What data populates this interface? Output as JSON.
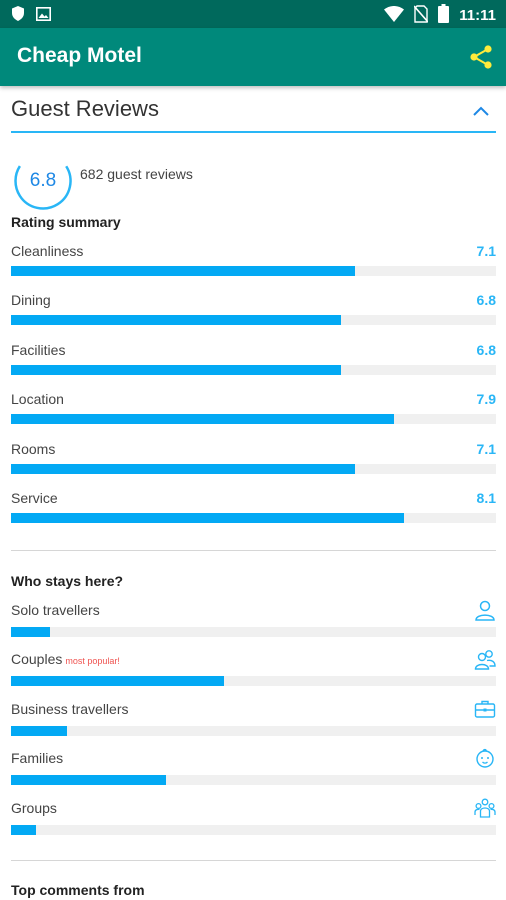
{
  "status_bar": {
    "time": "11:11",
    "left_icons": [
      "shield-icon",
      "image-icon"
    ],
    "right_icons": [
      "wifi-icon",
      "no-sim-icon",
      "battery-icon"
    ]
  },
  "app_bar": {
    "title": "Cheap Motel",
    "action_icon": "share-icon"
  },
  "section": {
    "title": "Guest Reviews",
    "toggle_icon": "chevron-up-icon"
  },
  "overall": {
    "score": "6.8",
    "score_value": 6.8,
    "score_max": 10,
    "review_count_text": "682 guest reviews"
  },
  "rating_summary": {
    "heading": "Rating summary",
    "max": 10,
    "items": [
      {
        "label": "Cleanliness",
        "value": "7.1",
        "fraction": 0.71
      },
      {
        "label": "Dining",
        "value": "6.8",
        "fraction": 0.68
      },
      {
        "label": "Facilities",
        "value": "6.8",
        "fraction": 0.68
      },
      {
        "label": "Location",
        "value": "7.9",
        "fraction": 0.79
      },
      {
        "label": "Rooms",
        "value": "7.1",
        "fraction": 0.71
      },
      {
        "label": "Service",
        "value": "8.1",
        "fraction": 0.81
      }
    ]
  },
  "who_stays": {
    "heading": "Who stays here?",
    "items": [
      {
        "label": "Solo travellers",
        "tag": "",
        "icon": "person-icon",
        "fraction": 0.08
      },
      {
        "label": "Couples",
        "tag": "most popular!",
        "icon": "couple-icon",
        "fraction": 0.44
      },
      {
        "label": "Business travellers",
        "tag": "",
        "icon": "briefcase-icon",
        "fraction": 0.115
      },
      {
        "label": "Families",
        "tag": "",
        "icon": "baby-face-icon",
        "fraction": 0.32
      },
      {
        "label": "Groups",
        "tag": "",
        "icon": "group-icon",
        "fraction": 0.052
      }
    ]
  },
  "top_comments": {
    "heading": "Top comments from"
  },
  "colors": {
    "status_bar": "#00695c",
    "app_bar": "#00897b",
    "accent": "#03a9f4",
    "share_icon": "#ffeb3b",
    "popular_tag": "#ef5350"
  }
}
